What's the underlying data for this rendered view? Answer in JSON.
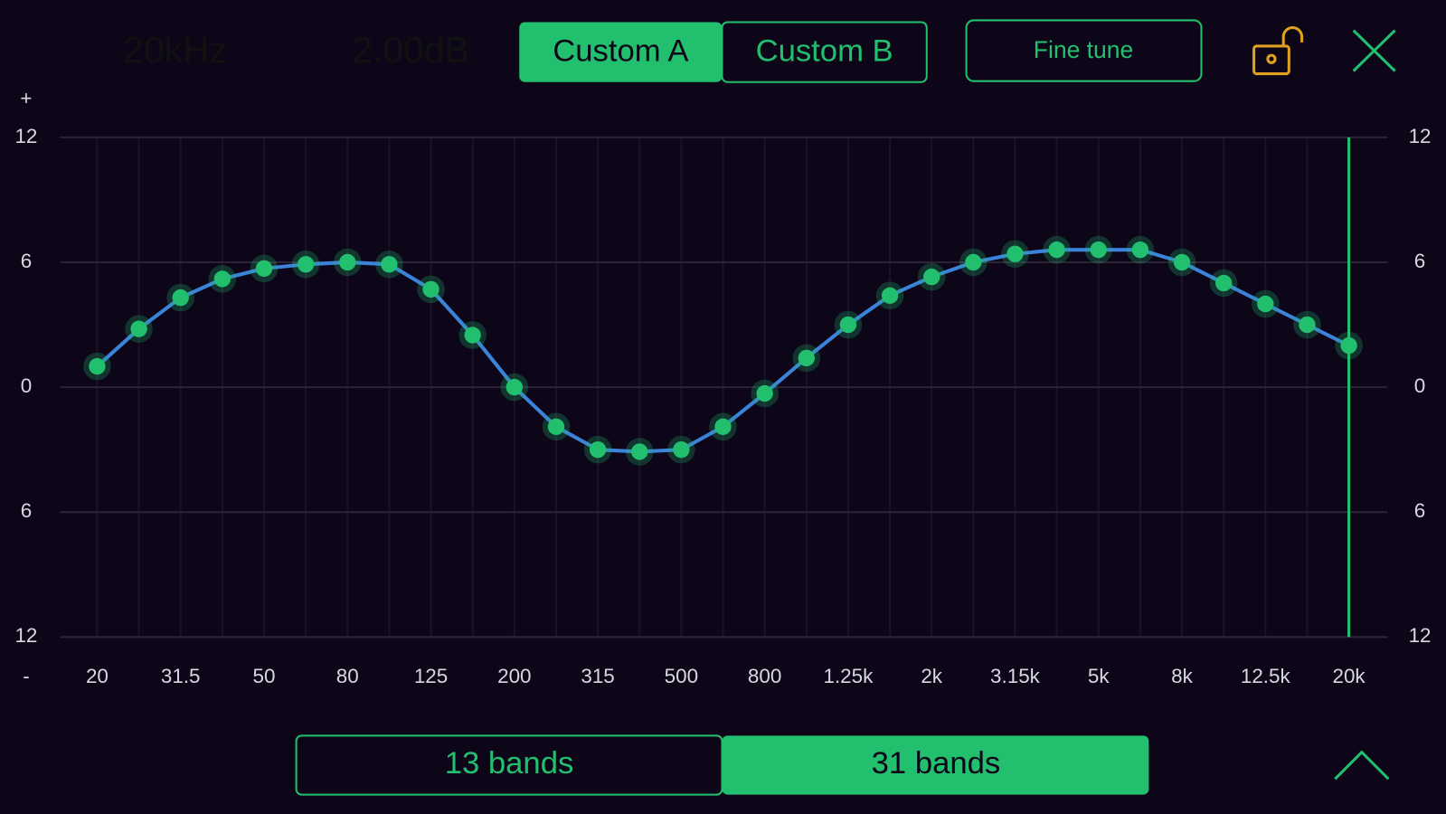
{
  "header": {
    "frequency": "20kHz",
    "gain": "2.00dB",
    "preset_a": "Custom A",
    "preset_b": "Custom B",
    "fine_tune": "Fine tune"
  },
  "footer": {
    "bands_13": "13 bands",
    "bands_31": "31 bands"
  },
  "chart_data": {
    "type": "line",
    "plus_label": "+",
    "minus_label": "-",
    "categories": [
      "20",
      null,
      "31.5",
      null,
      "50",
      null,
      "80",
      null,
      "125",
      null,
      "200",
      null,
      "315",
      null,
      "500",
      null,
      "800",
      null,
      "1.25k",
      null,
      "2k",
      null,
      "3.15k",
      null,
      "5k",
      null,
      "8k",
      null,
      "12.5k",
      null,
      "20k"
    ],
    "series": [
      {
        "color": "#3b82d9",
        "values": [
          1.0,
          2.8,
          4.3,
          5.2,
          5.7,
          5.9,
          6.0,
          5.9,
          4.7,
          2.5,
          0.0,
          -1.9,
          -3.0,
          -3.1,
          -3.0,
          -1.9,
          -0.3,
          1.4,
          3.0,
          4.4,
          5.3,
          6.0,
          6.4,
          6.6,
          6.6,
          6.6,
          6.0,
          5.0,
          4.0,
          3.0,
          2.0
        ]
      }
    ],
    "marker_color": "#22c06e",
    "ylim": [
      -12,
      12
    ],
    "yticks": [
      {
        "value": -12,
        "label": "12"
      },
      {
        "value": -6,
        "label": "6"
      },
      0,
      6,
      12
    ],
    "grid": true
  }
}
